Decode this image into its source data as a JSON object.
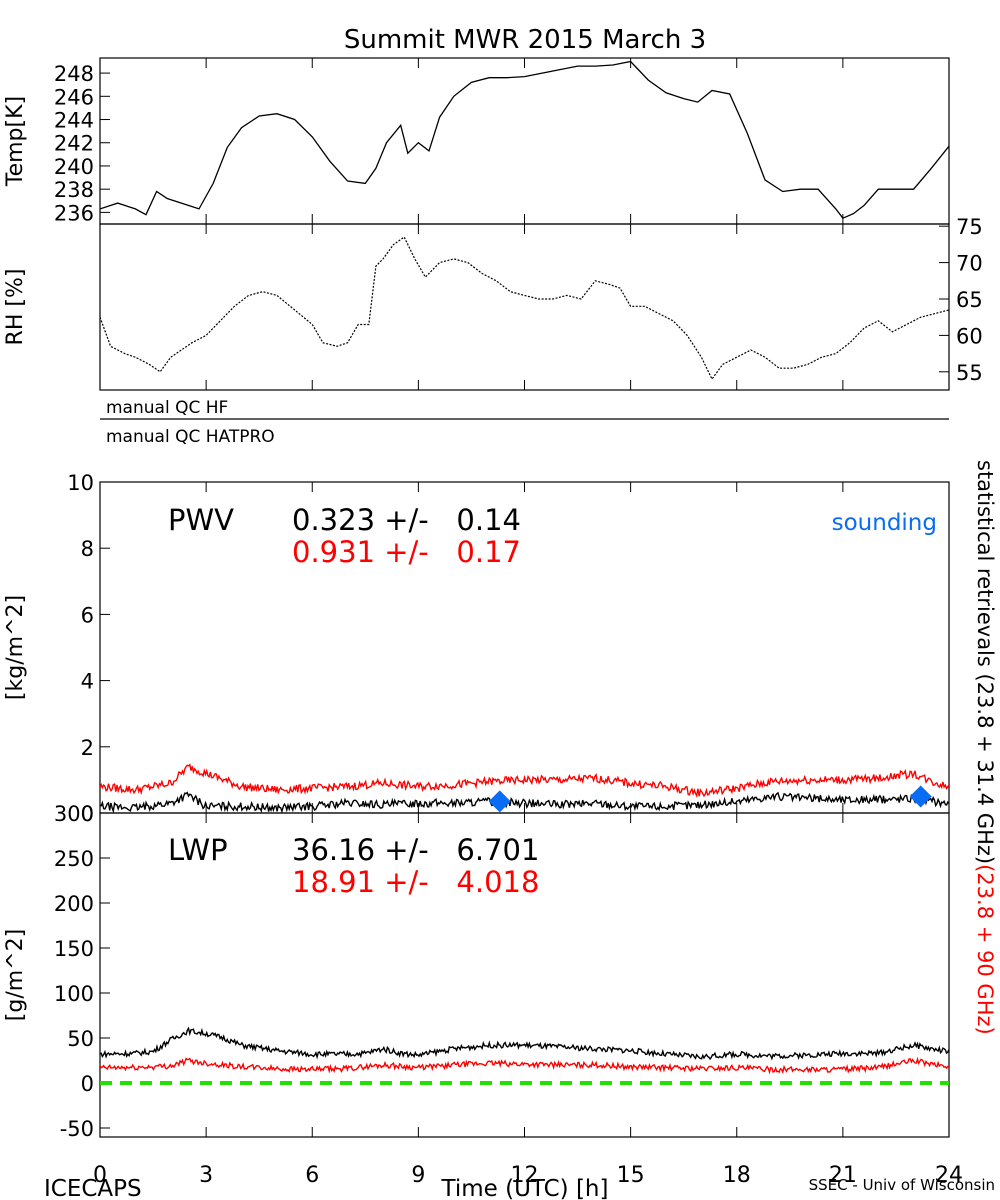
{
  "title": "Summit MWR 2015 March  3",
  "footer": {
    "left": "ICECAPS",
    "center": "Time (UTC) [h]",
    "right": "SSEC - Univ of Wisconsin"
  },
  "x_axis": {
    "ticks": [
      0,
      3,
      6,
      9,
      12,
      15,
      18,
      21,
      24
    ],
    "range": [
      0,
      24
    ]
  },
  "side_label": {
    "black": "statistical retrievals (23.8 + 31.4 GHz)",
    "red": "(23.8 + 90 GHz)"
  },
  "colors": {
    "black": "#000000",
    "red": "#ff0000",
    "blue": "#0a6cf2",
    "green": "#22e000"
  },
  "qc": {
    "hf_label": "manual  QC  HF",
    "hatpro_label": "manual  QC  HATPRO"
  },
  "chart_data": [
    {
      "id": "temp",
      "type": "line",
      "ylabel": "Temp[K]",
      "yticks": [
        236,
        238,
        240,
        242,
        244,
        246,
        248
      ],
      "ylim": [
        235,
        249.3
      ],
      "ticks_side": "left",
      "series": [
        {
          "color": "black",
          "x": [
            0,
            0.5,
            1,
            1.3,
            1.6,
            1.9,
            2.3,
            2.8,
            3.2,
            3.6,
            4.0,
            4.5,
            5.0,
            5.5,
            6.0,
            6.5,
            7.0,
            7.5,
            7.8,
            8.1,
            8.5,
            8.7,
            9.0,
            9.3,
            9.6,
            10.0,
            10.5,
            11.0,
            11.5,
            12.0,
            12.5,
            13.0,
            13.5,
            14.0,
            14.5,
            15.0,
            15.5,
            16.0,
            16.5,
            16.9,
            17.3,
            17.8,
            18.3,
            18.8,
            19.3,
            19.8,
            20.3,
            20.8,
            21.0,
            21.3,
            21.6,
            22.0,
            22.5,
            23.0,
            23.5,
            24.0
          ],
          "y": [
            236.3,
            236.8,
            236.3,
            235.8,
            237.8,
            237.2,
            236.8,
            236.3,
            238.5,
            241.6,
            243.3,
            244.3,
            244.5,
            244.0,
            242.5,
            240.4,
            238.7,
            238.5,
            239.8,
            242.0,
            243.5,
            241.1,
            242.0,
            241.3,
            244.2,
            246.0,
            247.2,
            247.6,
            247.6,
            247.7,
            248.0,
            248.3,
            248.6,
            248.6,
            248.7,
            249.0,
            247.4,
            246.3,
            245.8,
            245.5,
            246.5,
            246.2,
            242.8,
            238.8,
            237.8,
            238.0,
            238.0,
            236.3,
            235.5,
            235.9,
            236.6,
            238.0,
            238.0,
            238.0,
            239.8,
            241.7
          ]
        }
      ]
    },
    {
      "id": "rh",
      "type": "scatter",
      "ylabel": "RH [%]",
      "yticks": [
        55,
        60,
        65,
        70,
        75
      ],
      "ylim": [
        52.5,
        75.3
      ],
      "ticks_side": "right",
      "series": [
        {
          "color": "black",
          "x": [
            0,
            0.3,
            0.7,
            1.0,
            1.4,
            1.7,
            2.0,
            2.3,
            2.6,
            3.0,
            3.4,
            3.8,
            4.2,
            4.6,
            5.0,
            5.5,
            6.0,
            6.3,
            6.7,
            7.0,
            7.3,
            7.6,
            7.8,
            8.0,
            8.3,
            8.6,
            8.9,
            9.2,
            9.6,
            10.0,
            10.4,
            10.8,
            11.2,
            11.6,
            12.0,
            12.4,
            12.8,
            13.2,
            13.6,
            14.0,
            14.4,
            14.7,
            15.0,
            15.4,
            15.8,
            16.2,
            16.6,
            17.0,
            17.3,
            17.6,
            18.0,
            18.4,
            18.8,
            19.2,
            19.6,
            20.0,
            20.4,
            20.8,
            21.2,
            21.6,
            22.0,
            22.4,
            22.8,
            23.2,
            23.6,
            24.0
          ],
          "y": [
            62.5,
            58.5,
            57.5,
            57.0,
            56.0,
            55.0,
            57.0,
            58.0,
            59.0,
            60.0,
            62.0,
            64.0,
            65.5,
            66.0,
            65.5,
            63.5,
            61.5,
            59.0,
            58.5,
            59.0,
            61.5,
            61.5,
            69.5,
            70.5,
            72.5,
            73.5,
            70.5,
            68.0,
            70.0,
            70.5,
            70.0,
            68.5,
            67.5,
            66.0,
            65.5,
            65.0,
            65.0,
            65.5,
            65.0,
            67.5,
            67.0,
            66.5,
            64.0,
            64.0,
            63.0,
            62.0,
            60.0,
            57.0,
            54.0,
            56.0,
            57.0,
            58.0,
            57.0,
            55.5,
            55.5,
            56.0,
            57.0,
            57.5,
            59.0,
            61.0,
            62.0,
            60.5,
            61.5,
            62.5,
            63.0,
            63.5
          ]
        }
      ]
    },
    {
      "id": "pwv",
      "type": "line",
      "ylabel": "[kg/m^2]",
      "yticks": [
        0,
        2,
        4,
        6,
        8,
        10
      ],
      "ylim": [
        0,
        10
      ],
      "ticks_side": "left",
      "label": "PWV",
      "stats": [
        {
          "color": "black",
          "text": "0.323 +/-   0.14"
        },
        {
          "color": "red",
          "text": "0.931 +/-   0.17"
        }
      ],
      "legend_extra": {
        "color": "blue",
        "text": "sounding"
      },
      "series": [
        {
          "color": "red",
          "x": [
            0,
            1,
            2,
            2.5,
            3,
            4,
            5,
            6,
            7,
            8,
            9,
            10,
            11,
            12,
            13,
            14,
            15,
            16,
            17,
            18,
            19,
            20,
            21,
            22,
            23,
            23.5,
            24
          ],
          "y": [
            0.8,
            0.7,
            0.9,
            1.4,
            1.2,
            0.8,
            0.7,
            0.75,
            0.8,
            0.9,
            0.8,
            0.85,
            0.95,
            1.0,
            1.0,
            1.05,
            0.9,
            0.8,
            0.6,
            0.75,
            0.95,
            1.0,
            1.0,
            1.05,
            1.2,
            0.95,
            0.8
          ]
        },
        {
          "color": "black",
          "x": [
            0,
            1,
            2,
            2.5,
            3,
            4,
            5,
            6,
            7,
            8,
            9,
            10,
            11,
            12,
            13,
            14,
            15,
            16,
            17,
            18,
            19,
            20,
            21,
            22,
            23,
            23.5,
            24
          ],
          "y": [
            0.2,
            0.15,
            0.3,
            0.55,
            0.2,
            0.2,
            0.15,
            0.2,
            0.3,
            0.25,
            0.3,
            0.3,
            0.35,
            0.3,
            0.25,
            0.3,
            0.2,
            0.2,
            0.25,
            0.35,
            0.5,
            0.45,
            0.4,
            0.4,
            0.45,
            0.35,
            0.3
          ]
        }
      ],
      "markers": {
        "color": "blue",
        "x": [
          11.3,
          23.2
        ],
        "y": [
          0.35,
          0.5
        ]
      }
    },
    {
      "id": "lwp",
      "type": "line",
      "ylabel": "[g/m^2]",
      "yticks": [
        -50,
        0,
        50,
        100,
        150,
        200,
        250,
        300
      ],
      "ylim": [
        -60,
        300
      ],
      "ticks_side": "left",
      "label": "LWP",
      "stats": [
        {
          "color": "black",
          "text": "36.16 +/-   6.701"
        },
        {
          "color": "red",
          "text": "18.91 +/-   4.018"
        }
      ],
      "series": [
        {
          "color": "black",
          "x": [
            0,
            1,
            1.5,
            2,
            2.5,
            3,
            3.5,
            4,
            5,
            6,
            7,
            7.5,
            8,
            8.5,
            9,
            10,
            11,
            12,
            13,
            14,
            15,
            16,
            17,
            18,
            19,
            20,
            21,
            22,
            23,
            23.5,
            24
          ],
          "y": [
            32,
            33,
            35,
            48,
            58,
            55,
            50,
            42,
            36,
            32,
            32,
            33,
            38,
            33,
            31,
            38,
            42,
            42,
            40,
            38,
            36,
            32,
            29,
            32,
            30,
            31,
            33,
            33,
            42,
            38,
            35
          ]
        },
        {
          "color": "red",
          "x": [
            0,
            1,
            2,
            2.5,
            3,
            4,
            5,
            6,
            7,
            8,
            9,
            10,
            11,
            12,
            13,
            14,
            15,
            16,
            17,
            18,
            19,
            20,
            21,
            22,
            23,
            23.5,
            24
          ],
          "y": [
            17,
            17,
            19,
            25,
            22,
            18,
            16,
            15,
            16,
            20,
            17,
            20,
            22,
            21,
            20,
            20,
            18,
            17,
            16,
            17,
            15,
            15,
            15,
            17,
            25,
            21,
            18
          ]
        }
      ],
      "reference_line": {
        "color": "green",
        "y": 0
      }
    }
  ]
}
